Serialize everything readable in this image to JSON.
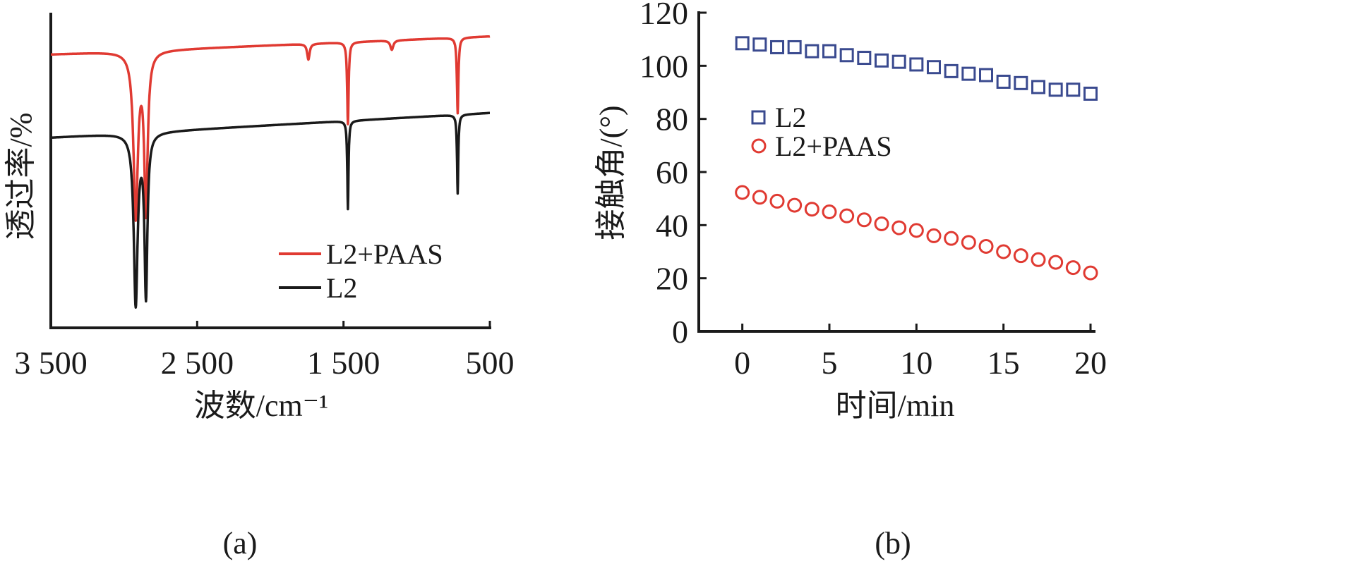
{
  "chart_data": [
    {
      "type": "line",
      "panel_caption": "(a)",
      "xlabel": "波数/cm⁻¹",
      "ylabel": "透过率/%",
      "xlim": [
        3500,
        500
      ],
      "ylim": [
        0,
        100
      ],
      "xticks": [
        3500,
        2500,
        1500,
        500
      ],
      "xtick_labels": [
        "3 500",
        "2 500",
        "1 500",
        "500"
      ],
      "legend_placement": "lower-right",
      "series": [
        {
          "name": "L2+PAAS",
          "color": "#e03a32",
          "baseline": {
            "start": 86.8,
            "end": 92.5
          },
          "peaks": [
            {
              "x": 2920,
              "depth": 52,
              "width": 18
            },
            {
              "x": 2850,
              "depth": 50,
              "width": 14
            },
            {
              "x": 1740,
              "depth": 5,
              "width": 10
            },
            {
              "x": 1470,
              "depth": 26,
              "width": 6
            },
            {
              "x": 1170,
              "depth": 3,
              "width": 12
            },
            {
              "x": 720,
              "depth": 24,
              "width": 6
            }
          ]
        },
        {
          "name": "L2",
          "color": "#1a1a1a",
          "baseline": {
            "start": 60.4,
            "end": 68.2
          },
          "peaks": [
            {
              "x": 2920,
              "depth": 54,
              "width": 16
            },
            {
              "x": 2850,
              "depth": 51,
              "width": 12
            },
            {
              "x": 1470,
              "depth": 28,
              "width": 5
            },
            {
              "x": 720,
              "depth": 25,
              "width": 5
            }
          ]
        }
      ]
    },
    {
      "type": "scatter",
      "panel_caption": "(b)",
      "xlabel": "时间/min",
      "ylabel": "接触角/(°)",
      "xlim": [
        -2.5,
        20
      ],
      "ylim": [
        0,
        120
      ],
      "xticks": [
        0,
        5,
        10,
        15,
        20
      ],
      "yticks": [
        0,
        20,
        40,
        60,
        80,
        100,
        120
      ],
      "legend_placement": "center-left",
      "x": [
        0,
        1,
        2,
        3,
        4,
        5,
        6,
        7,
        8,
        9,
        10,
        11,
        12,
        13,
        14,
        15,
        16,
        17,
        18,
        19,
        20
      ],
      "series": [
        {
          "name": "L2",
          "marker": "square",
          "color": "#3a4a8f",
          "values": [
            108.5,
            108,
            107,
            107,
            105.5,
            105.5,
            104,
            103,
            102,
            101.5,
            100.5,
            99.5,
            98,
            97,
            96.5,
            94,
            93.5,
            92,
            91,
            91,
            89.5
          ]
        },
        {
          "name": "L2+PAAS",
          "marker": "circle",
          "color": "#e03a32",
          "values": [
            52.3,
            50.5,
            49,
            47.5,
            46,
            45,
            43.5,
            42,
            40.5,
            39,
            38,
            36,
            35,
            33.5,
            32,
            30,
            28.5,
            27,
            26,
            24,
            22
          ]
        }
      ]
    }
  ]
}
